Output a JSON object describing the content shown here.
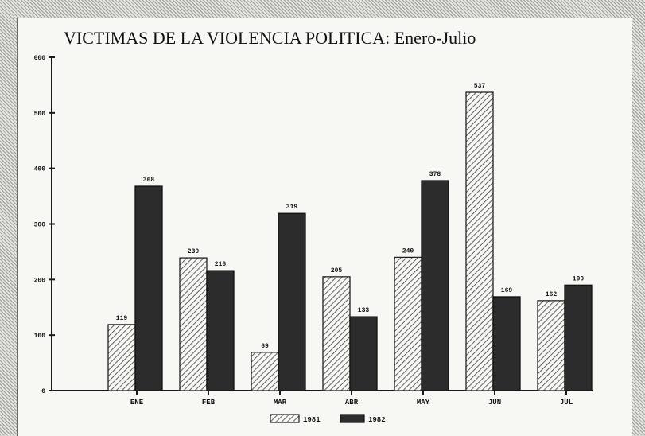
{
  "chart_data": {
    "type": "bar",
    "title": "VICTIMAS DE LA VIOLENCIA POLITICA: Enero-Julio",
    "categories": [
      "ENE",
      "FEB",
      "MAR",
      "ABR",
      "MAY",
      "JUN",
      "JUL"
    ],
    "series": [
      {
        "name": "1981",
        "values": [
          119,
          239,
          69,
          205,
          240,
          537,
          162
        ],
        "pattern": "hatched"
      },
      {
        "name": "1982",
        "values": [
          368,
          216,
          319,
          133,
          378,
          169,
          190
        ],
        "pattern": "solid-dark"
      }
    ],
    "value_labels": {
      "1981": [
        "119",
        "239",
        "69",
        "205",
        "240",
        "537",
        "162"
      ],
      "1982": [
        "368",
        "216",
        "319",
        "133",
        "378",
        "169",
        "190"
      ]
    },
    "yticks": [
      "0",
      "100",
      "200",
      "300",
      "400",
      "500",
      "600"
    ],
    "ylim": [
      0,
      600
    ],
    "xlabel": "",
    "ylabel": "",
    "legend_position": "bottom-center",
    "grid": false,
    "colors": {
      "hatch": "#3a3a3a",
      "dark_bar": "#2c2c2c",
      "axis": "#1a1a1a",
      "paper": "#f7f7f4"
    }
  }
}
